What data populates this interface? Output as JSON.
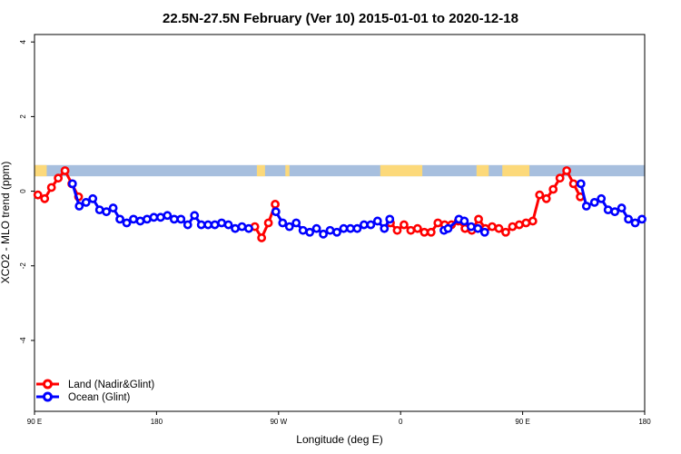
{
  "chart_data": {
    "type": "line",
    "title": "22.5N-27.5N February (Ver 10)   2015-01-01 to 2020-12-18",
    "xlabel": "Longitude (deg E)",
    "ylabel": "XCO2 - MLO trend (ppm)",
    "xlim": [
      90,
      540
    ],
    "ylim": [
      -5.9,
      4.2
    ],
    "x_ticks": [
      {
        "value": 90,
        "label": "90 E"
      },
      {
        "value": 180,
        "label": "180"
      },
      {
        "value": 270,
        "label": "90 W"
      },
      {
        "value": 360,
        "label": "0"
      },
      {
        "value": 450,
        "label": "90 E"
      },
      {
        "value": 540,
        "label": "180"
      }
    ],
    "y_ticks": [
      {
        "value": 4,
        "label": "4"
      },
      {
        "value": 2,
        "label": "2"
      },
      {
        "value": 0,
        "label": "0"
      },
      {
        "value": -2,
        "label": "-2"
      },
      {
        "value": -4,
        "label": "-4"
      }
    ],
    "land_mask_band": {
      "y_range": [
        0.4,
        0.7
      ],
      "ocean_color": "#a7bfde",
      "land_color": "#fcd97a",
      "land_segments": [
        [
          90,
          99
        ],
        [
          254,
          260
        ],
        [
          275,
          278
        ],
        [
          345,
          376
        ],
        [
          416,
          425
        ],
        [
          435,
          455
        ]
      ]
    },
    "legend_position": "bottom-left",
    "series": [
      {
        "name": "Land (Nadir&Glint)",
        "color": "#ff0000",
        "points": [
          [
            92.5,
            -0.1
          ],
          [
            97.5,
            -0.2
          ],
          [
            102.5,
            0.1
          ],
          [
            107.5,
            0.35
          ],
          [
            112.5,
            0.55
          ],
          [
            117.5,
            0.2
          ],
          [
            122.5,
            -0.15
          ],
          [
            252.5,
            -0.95
          ],
          [
            257.5,
            -1.25
          ],
          [
            262.5,
            -0.85
          ],
          [
            267.5,
            -0.35
          ],
          [
            352.5,
            -0.85
          ],
          [
            357.5,
            -1.05
          ],
          [
            362.5,
            -0.9
          ],
          [
            367.5,
            -1.05
          ],
          [
            372.5,
            -1.0
          ],
          [
            377.5,
            -1.1
          ],
          [
            382.5,
            -1.1
          ],
          [
            387.5,
            -0.85
          ],
          [
            392.5,
            -0.9
          ],
          [
            397.5,
            -0.9
          ],
          [
            402.5,
            -0.8
          ],
          [
            407.5,
            -1.0
          ],
          [
            412.5,
            -1.05
          ],
          [
            417.5,
            -0.75
          ],
          [
            422.5,
            -1.0
          ],
          [
            427.5,
            -0.95
          ],
          [
            432.5,
            -1.0
          ],
          [
            437.5,
            -1.1
          ],
          [
            442.5,
            -0.95
          ],
          [
            447.5,
            -0.9
          ],
          [
            452.5,
            -0.85
          ],
          [
            457.5,
            -0.8
          ],
          [
            462.5,
            -0.1
          ],
          [
            467.5,
            -0.2
          ],
          [
            472.5,
            0.05
          ],
          [
            477.5,
            0.35
          ],
          [
            482.5,
            0.55
          ],
          [
            487.5,
            0.2
          ],
          [
            492.5,
            -0.15
          ]
        ]
      },
      {
        "name": "Ocean (Glint)",
        "color": "#0000ff",
        "points": [
          [
            118,
            0.2
          ],
          [
            123,
            -0.4
          ],
          [
            128,
            -0.3
          ],
          [
            133,
            -0.2
          ],
          [
            138,
            -0.5
          ],
          [
            143,
            -0.55
          ],
          [
            148,
            -0.45
          ],
          [
            153,
            -0.75
          ],
          [
            158,
            -0.85
          ],
          [
            163,
            -0.75
          ],
          [
            168,
            -0.8
          ],
          [
            173,
            -0.75
          ],
          [
            178,
            -0.7
          ],
          [
            183,
            -0.7
          ],
          [
            188,
            -0.65
          ],
          [
            193,
            -0.75
          ],
          [
            198,
            -0.75
          ],
          [
            203,
            -0.9
          ],
          [
            208,
            -0.65
          ],
          [
            213,
            -0.9
          ],
          [
            218,
            -0.9
          ],
          [
            223,
            -0.9
          ],
          [
            228,
            -0.85
          ],
          [
            233,
            -0.9
          ],
          [
            238,
            -1.0
          ],
          [
            243,
            -0.95
          ],
          [
            248,
            -1.0
          ],
          [
            268,
            -0.55
          ],
          [
            273,
            -0.85
          ],
          [
            278,
            -0.95
          ],
          [
            283,
            -0.85
          ],
          [
            288,
            -1.05
          ],
          [
            293,
            -1.1
          ],
          [
            298,
            -1.0
          ],
          [
            303,
            -1.15
          ],
          [
            308,
            -1.05
          ],
          [
            313,
            -1.1
          ],
          [
            318,
            -1.0
          ],
          [
            323,
            -1.0
          ],
          [
            328,
            -1.0
          ],
          [
            333,
            -0.9
          ],
          [
            338,
            -0.9
          ],
          [
            343,
            -0.8
          ],
          [
            348,
            -1.0
          ],
          [
            352,
            -0.75
          ],
          [
            392,
            -1.05
          ],
          [
            395,
            -1.0
          ],
          [
            403,
            -0.75
          ],
          [
            407,
            -0.8
          ],
          [
            412,
            -0.95
          ],
          [
            417,
            -1.0
          ],
          [
            422,
            -1.1
          ],
          [
            493,
            0.2
          ],
          [
            497,
            -0.4
          ],
          [
            503,
            -0.3
          ],
          [
            508,
            -0.2
          ],
          [
            513,
            -0.5
          ],
          [
            518,
            -0.55
          ],
          [
            523,
            -0.45
          ],
          [
            528,
            -0.75
          ],
          [
            533,
            -0.85
          ],
          [
            538,
            -0.75
          ]
        ]
      }
    ]
  }
}
